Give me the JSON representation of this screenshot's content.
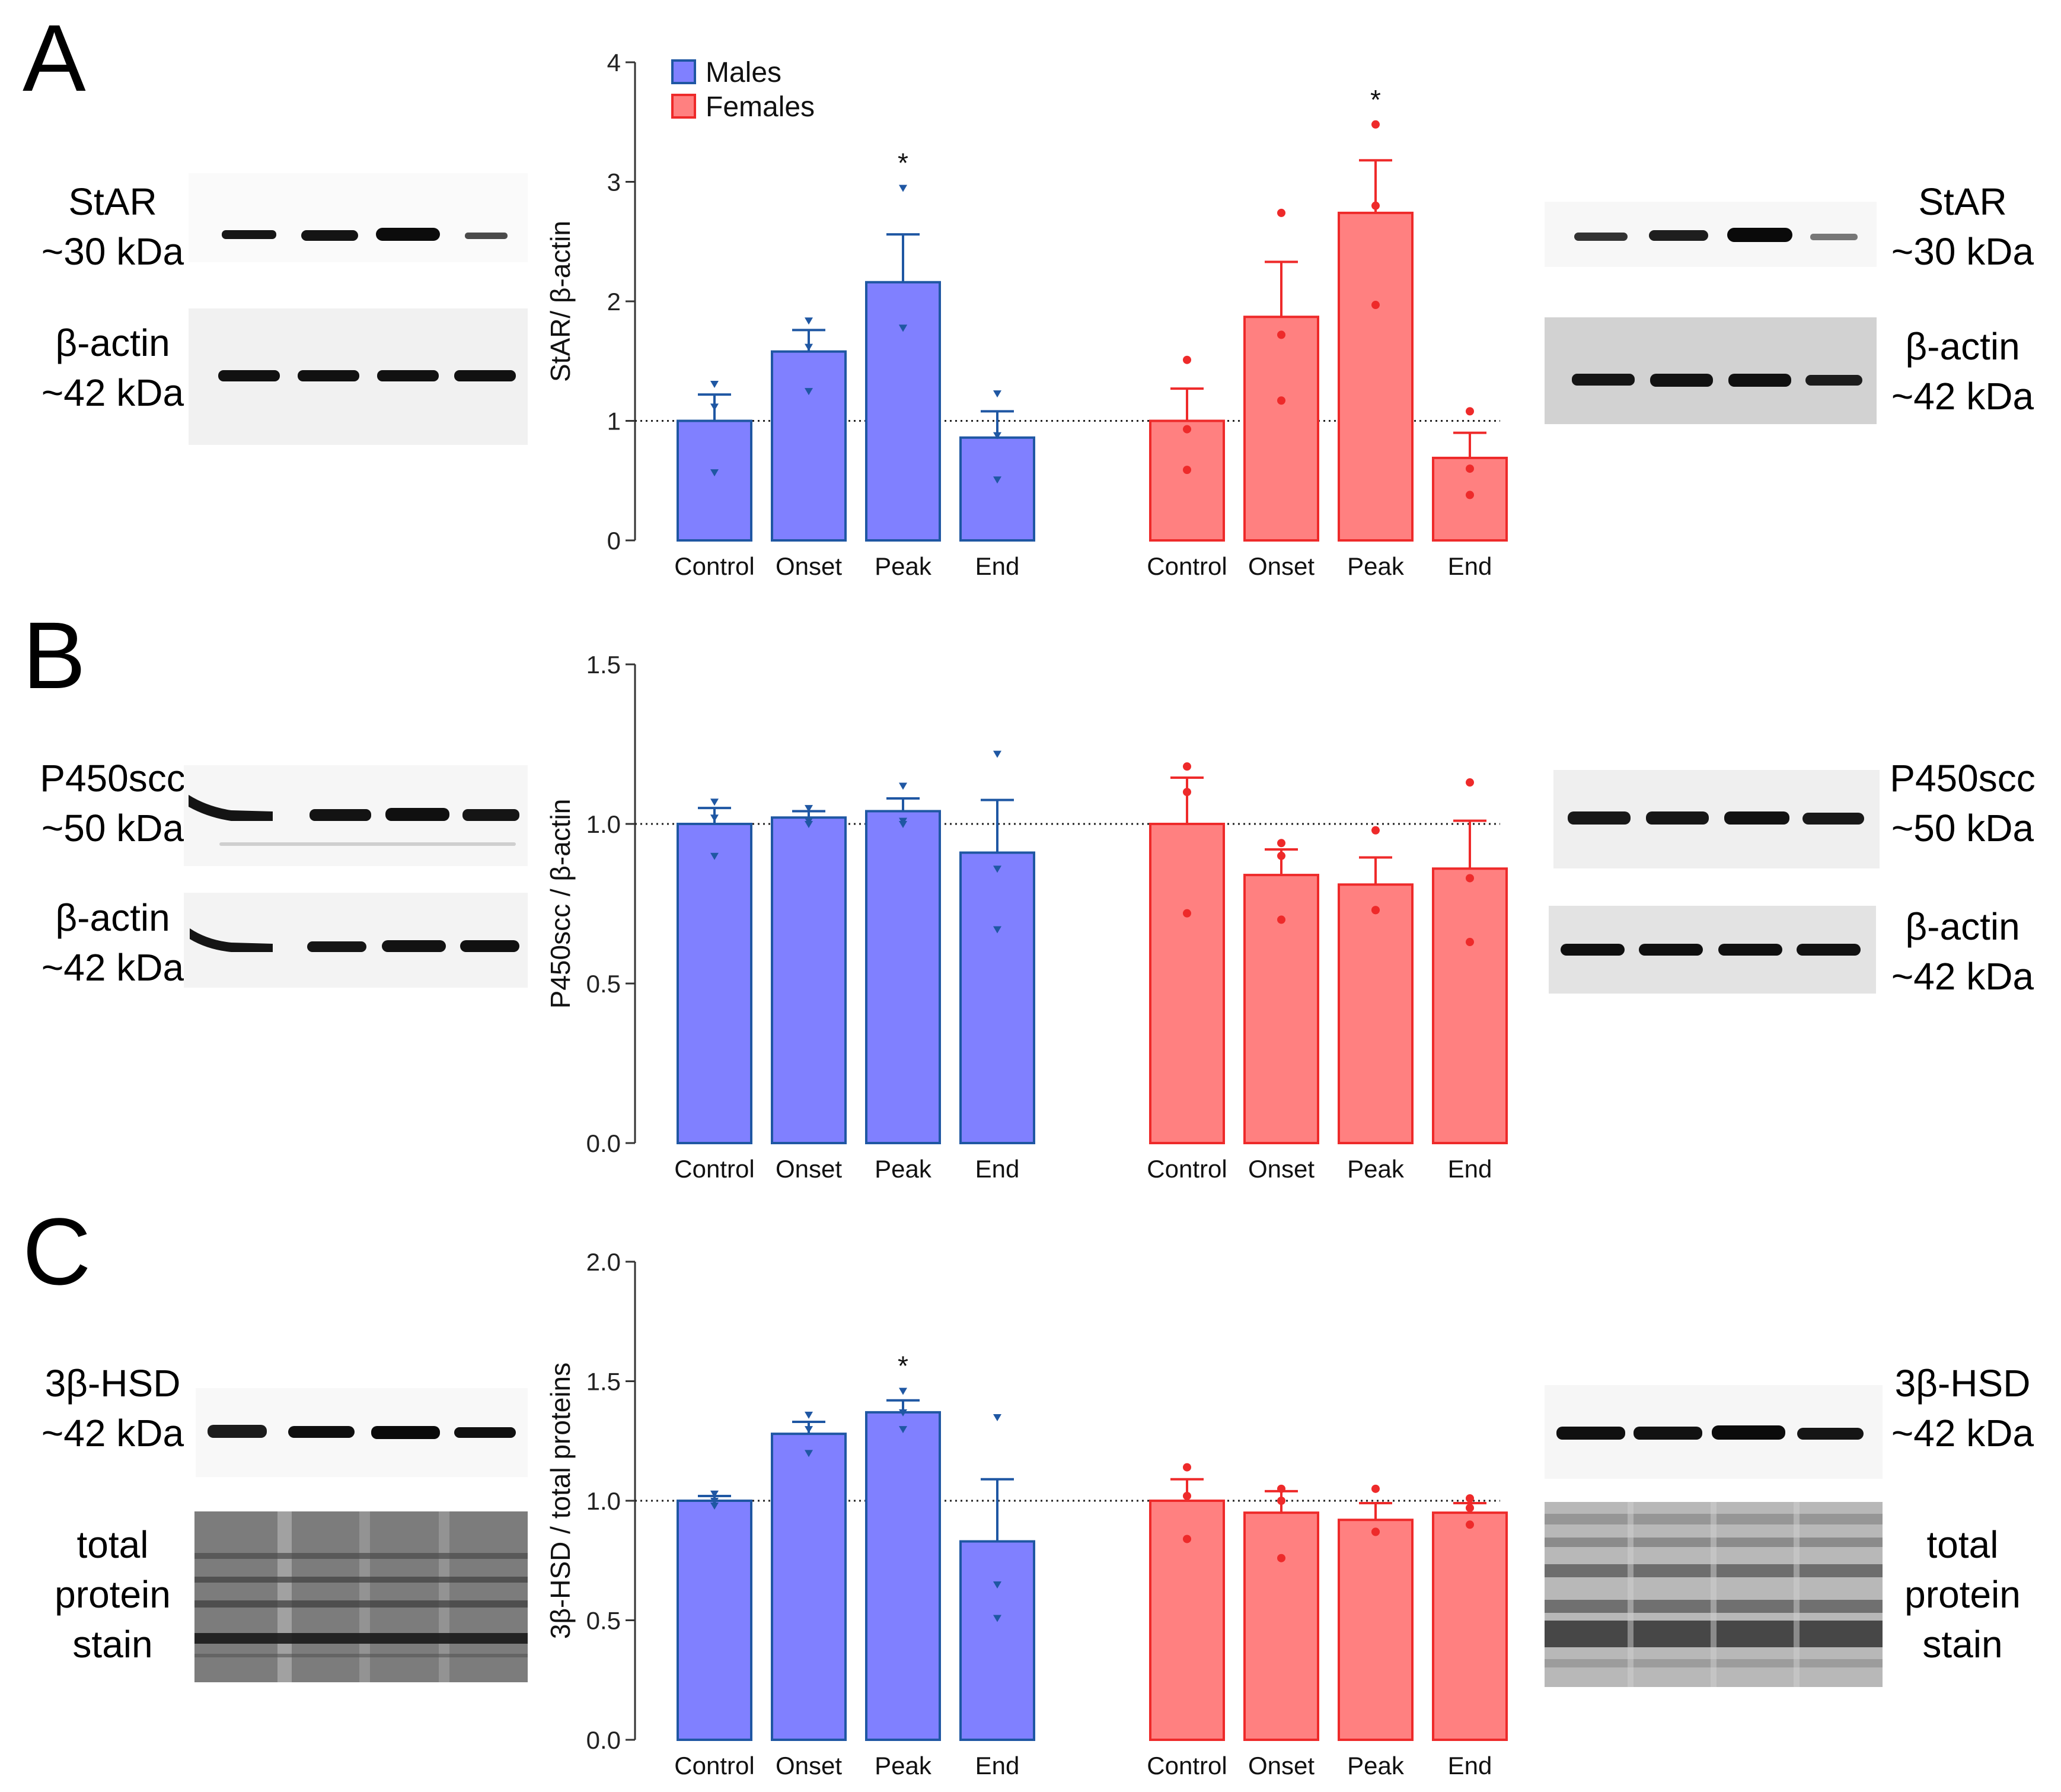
{
  "legend": {
    "males": "Males",
    "females": "Females"
  },
  "colors": {
    "male_fill": "#8080ff",
    "male_stroke": "#1f57a3",
    "female_fill": "#ff8080",
    "female_stroke": "#ee2a2a",
    "axis": "#333333",
    "band": "#141414"
  },
  "panels": {
    "A": {
      "letter": "A",
      "left_blots": [
        {
          "name": "StAR",
          "size": "~30 kDa"
        },
        {
          "name": "β-actin",
          "size": "~42 kDa"
        }
      ],
      "right_blots": [
        {
          "name": "StAR",
          "size": "~30 kDa"
        },
        {
          "name": "β-actin",
          "size": "~42 kDa"
        }
      ]
    },
    "B": {
      "letter": "B",
      "left_blots": [
        {
          "name": "P450scc",
          "size": "~50 kDa"
        },
        {
          "name": "β-actin",
          "size": "~42 kDa"
        }
      ],
      "right_blots": [
        {
          "name": "P450scc",
          "size": "~50 kDa"
        },
        {
          "name": "β-actin",
          "size": "~42 kDa"
        }
      ]
    },
    "C": {
      "letter": "C",
      "left_blots": [
        {
          "name": "3β-HSD",
          "size": "~42 kDa"
        },
        {
          "name": "total protein stain"
        }
      ],
      "right_blots": [
        {
          "name": "3β-HSD",
          "size": "~42 kDa"
        },
        {
          "name": "total protein stain"
        }
      ]
    }
  },
  "chart_data": [
    {
      "type": "bar",
      "panel": "A",
      "ylabel": "StAR/ β-actin",
      "ylim": [
        0,
        4
      ],
      "yticks": [
        0,
        1,
        2,
        3,
        4
      ],
      "ytick_labels": [
        "0",
        "1",
        "2",
        "3",
        "4"
      ],
      "reference_line": 1,
      "categories": [
        "Control",
        "Onset",
        "Peak",
        "End"
      ],
      "series": [
        {
          "name": "Males",
          "values": [
            1.0,
            1.58,
            2.16,
            0.86
          ],
          "sem": [
            0.22,
            0.18,
            0.4,
            0.22
          ],
          "points": [
            [
              0.57,
              1.12,
              1.31
            ],
            [
              1.25,
              1.62,
              1.84
            ],
            [
              1.78,
              1.78,
              2.95
            ],
            [
              0.51,
              0.88,
              1.23
            ]
          ],
          "significance": [
            "",
            "",
            "*",
            ""
          ]
        },
        {
          "name": "Females",
          "values": [
            1.0,
            1.87,
            2.74,
            0.69
          ],
          "sem": [
            0.27,
            0.46,
            0.44,
            0.21
          ],
          "points": [
            [
              0.59,
              0.93,
              1.51
            ],
            [
              1.17,
              1.72,
              2.74
            ],
            [
              1.97,
              2.8,
              3.48
            ],
            [
              0.38,
              0.6,
              1.08
            ]
          ],
          "significance": [
            "",
            "",
            "*",
            ""
          ]
        }
      ]
    },
    {
      "type": "bar",
      "panel": "B",
      "ylabel": "P450scc / β-actin",
      "ylim": [
        0,
        1.5
      ],
      "yticks": [
        0,
        0.5,
        1.0,
        1.5
      ],
      "ytick_labels": [
        "0.0",
        "0.5",
        "1.0",
        "1.5"
      ],
      "reference_line": 1.0,
      "categories": [
        "Control",
        "Onset",
        "Peak",
        "End"
      ],
      "series": [
        {
          "name": "Males",
          "values": [
            1.0,
            1.02,
            1.04,
            0.91
          ],
          "sem": [
            0.05,
            0.02,
            0.04,
            0.165
          ],
          "points": [
            [
              0.9,
              1.02,
              1.07
            ],
            [
              1.0,
              1.01,
              1.05
            ],
            [
              1.0,
              1.01,
              1.12
            ],
            [
              0.67,
              0.86,
              1.22
            ]
          ],
          "significance": [
            "",
            "",
            "",
            ""
          ]
        },
        {
          "name": "Females",
          "values": [
            1.0,
            0.84,
            0.81,
            0.86
          ],
          "sem": [
            0.145,
            0.08,
            0.085,
            0.15
          ],
          "points": [
            [
              0.72,
              1.1,
              1.18
            ],
            [
              0.7,
              0.9,
              0.94
            ],
            [
              0.73,
              0.73,
              0.98
            ],
            [
              0.63,
              0.83,
              1.13
            ]
          ],
          "significance": [
            "",
            "",
            "",
            ""
          ]
        }
      ]
    },
    {
      "type": "bar",
      "panel": "C",
      "ylabel": "3β-HSD / total proteins",
      "ylim": [
        0,
        2.0
      ],
      "yticks": [
        0,
        0.5,
        1.0,
        1.5,
        2.0
      ],
      "ytick_labels": [
        "0.0",
        "0.5",
        "1.0",
        "1.5",
        "2.0"
      ],
      "reference_line": 1.0,
      "categories": [
        "Control",
        "Onset",
        "Peak",
        "End"
      ],
      "series": [
        {
          "name": "Males",
          "values": [
            1.0,
            1.28,
            1.37,
            0.83
          ],
          "sem": [
            0.02,
            0.05,
            0.05,
            0.26
          ],
          "points": [
            [
              0.98,
              1.0,
              1.03
            ],
            [
              1.2,
              1.3,
              1.36
            ],
            [
              1.3,
              1.37,
              1.46
            ],
            [
              0.51,
              0.65,
              1.35
            ]
          ],
          "significance": [
            "",
            "",
            "*",
            ""
          ]
        },
        {
          "name": "Females",
          "values": [
            1.0,
            0.95,
            0.92,
            0.95
          ],
          "sem": [
            0.09,
            0.09,
            0.07,
            0.04
          ],
          "points": [
            [
              0.84,
              1.02,
              1.14
            ],
            [
              0.76,
              1.0,
              1.05
            ],
            [
              0.87,
              0.87,
              1.05
            ],
            [
              0.9,
              0.97,
              1.01
            ]
          ],
          "significance": [
            "",
            "",
            "",
            ""
          ]
        }
      ]
    }
  ]
}
